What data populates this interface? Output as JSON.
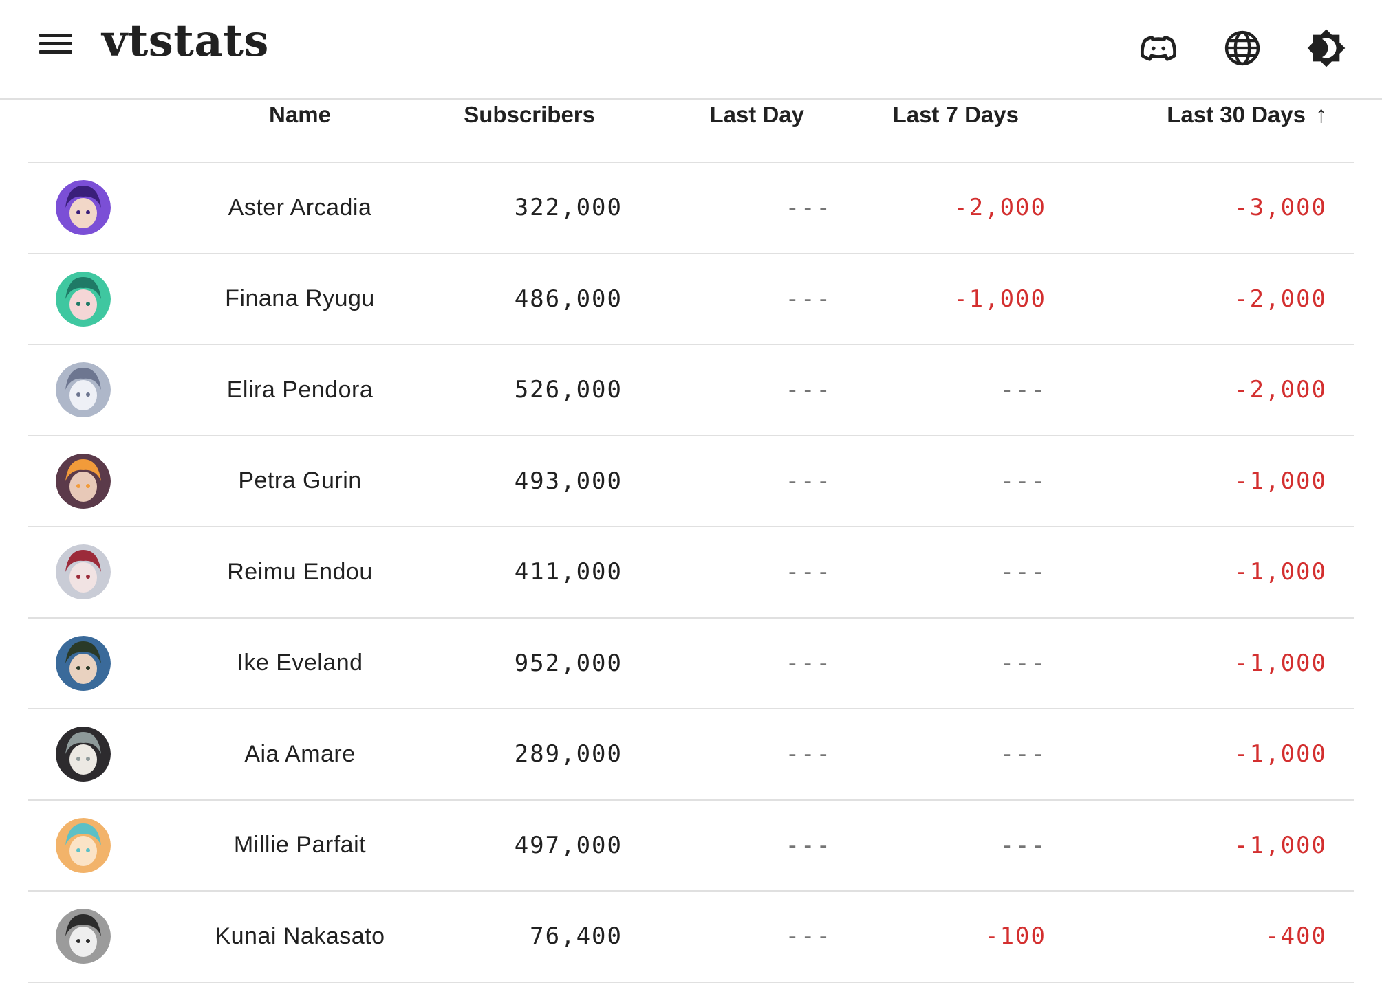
{
  "app": {
    "title": "vtstats"
  },
  "header_icons": [
    "menu-icon",
    "discord-icon",
    "globe-icon",
    "theme-toggle-icon"
  ],
  "table": {
    "columns": {
      "name": "Name",
      "subscribers": "Subscribers",
      "last_day": "Last Day",
      "last_7_days": "Last 7 Days",
      "last_30_days": "Last 30 Days",
      "sort_indicator": "↑"
    },
    "rows": [
      {
        "name": "Aster Arcadia",
        "subscribers": "322,000",
        "last_day": "---",
        "last_7_days": "-2,000",
        "last_30_days": "-3,000"
      },
      {
        "name": "Finana Ryugu",
        "subscribers": "486,000",
        "last_day": "---",
        "last_7_days": "-1,000",
        "last_30_days": "-2,000"
      },
      {
        "name": "Elira Pendora",
        "subscribers": "526,000",
        "last_day": "---",
        "last_7_days": "---",
        "last_30_days": "-2,000"
      },
      {
        "name": "Petra Gurin",
        "subscribers": "493,000",
        "last_day": "---",
        "last_7_days": "---",
        "last_30_days": "-1,000"
      },
      {
        "name": "Reimu Endou",
        "subscribers": "411,000",
        "last_day": "---",
        "last_7_days": "---",
        "last_30_days": "-1,000"
      },
      {
        "name": "Ike Eveland",
        "subscribers": "952,000",
        "last_day": "---",
        "last_7_days": "---",
        "last_30_days": "-1,000"
      },
      {
        "name": "Aia Amare",
        "subscribers": "289,000",
        "last_day": "---",
        "last_7_days": "---",
        "last_30_days": "-1,000"
      },
      {
        "name": "Millie Parfait",
        "subscribers": "497,000",
        "last_day": "---",
        "last_7_days": "---",
        "last_30_days": "-1,000"
      },
      {
        "name": "Kunai Nakasato",
        "subscribers": "76,400",
        "last_day": "---",
        "last_7_days": "-100",
        "last_30_days": "-400"
      }
    ]
  },
  "colors": {
    "negative": "#d32f2f",
    "neutral": "#757575",
    "text": "#212121",
    "divider": "#e0e0e0"
  }
}
